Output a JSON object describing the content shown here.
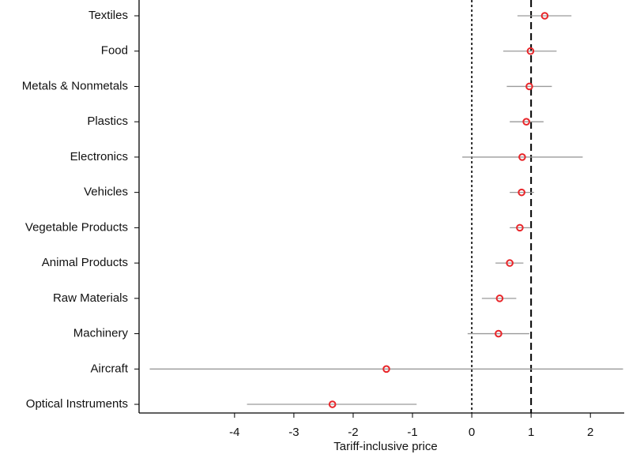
{
  "chart_data": {
    "type": "coefficient",
    "x_label": "Tariff-inclusive price",
    "categories": [
      "Textiles",
      "Food",
      "Metals & Nonmetals",
      "Plastics",
      "Electronics",
      "Vehicles",
      "Vegetable Products",
      "Animal Products",
      "Raw Materials",
      "Machinery",
      "Aircraft",
      "Optical Instruments"
    ],
    "values": [
      1.23,
      0.99,
      0.97,
      0.92,
      0.85,
      0.84,
      0.81,
      0.64,
      0.47,
      0.45,
      -1.44,
      -2.35
    ],
    "lower": [
      0.77,
      0.53,
      0.59,
      0.64,
      -0.16,
      0.64,
      0.64,
      0.4,
      0.17,
      -0.07,
      -5.43,
      -3.79
    ],
    "upper": [
      1.68,
      1.43,
      1.35,
      1.21,
      1.87,
      1.05,
      0.99,
      0.87,
      0.75,
      0.97,
      2.55,
      -0.93
    ],
    "color": "#e8262a",
    "interval_color": "#9a9a9a",
    "xlim": [
      -5.61,
      2.57
    ],
    "xticks": [
      -4,
      -3,
      -2,
      -1,
      0,
      1,
      2
    ],
    "reference_lines": [
      {
        "value": 0,
        "style": "dotted"
      },
      {
        "value": 1,
        "style": "dashed"
      }
    ]
  }
}
